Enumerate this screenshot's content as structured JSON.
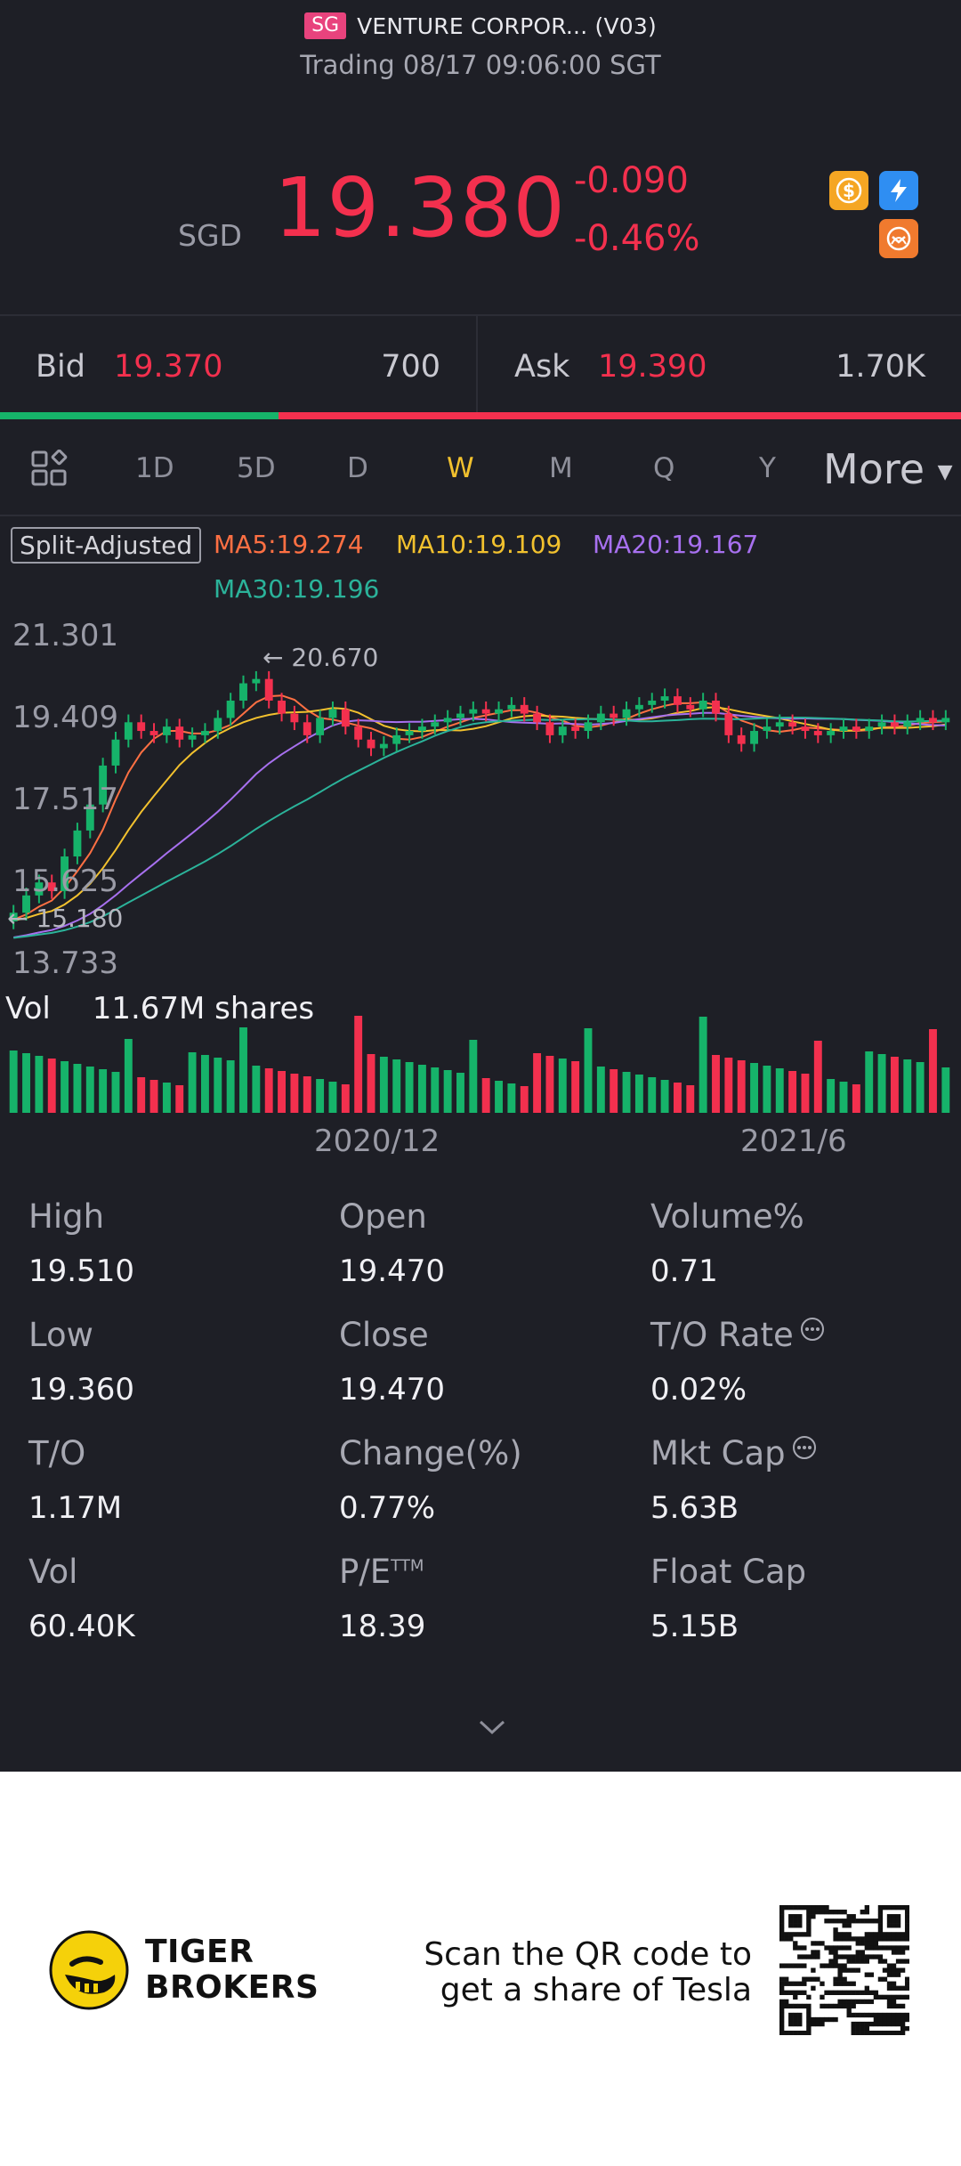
{
  "header": {
    "market_badge": "SG",
    "stock_name": "VENTURE CORPOR... (V03)",
    "status": "Trading 08/17 09:06:00 SGT"
  },
  "quote": {
    "currency": "SGD",
    "price": "19.380",
    "change": "-0.090",
    "change_pct": "-0.46%",
    "price_color": "#f3304e"
  },
  "icons": [
    "dollar-icon",
    "lightning-icon",
    "exchange-icon"
  ],
  "bidask": {
    "bid_label": "Bid",
    "bid_price": "19.370",
    "bid_qty": "700",
    "ask_label": "Ask",
    "ask_price": "19.390",
    "ask_qty": "1.70K",
    "bid_ratio": 0.29
  },
  "tabs": {
    "items": [
      "1D",
      "5D",
      "D",
      "W",
      "M",
      "Q",
      "Y"
    ],
    "active": "W",
    "more": "More"
  },
  "chart": {
    "split_label": "Split-Adjusted",
    "ma5": "MA5:19.274",
    "ma10": "MA10:19.109",
    "ma20": "MA20:19.167",
    "ma30": "MA30:19.196",
    "y_ticks": [
      "21.301",
      "19.409",
      "17.517",
      "15.625",
      "13.733"
    ],
    "high_marker": "20.670",
    "low_marker": "15.180",
    "vol_label": "Vol",
    "vol_value": "11.67M shares",
    "x_ticks": [
      "2020/12",
      "2021/6"
    ],
    "colors": {
      "up": "#16b36a",
      "down": "#f3304e",
      "ma5": "#ff7043",
      "ma10": "#f2c12e",
      "ma20": "#a770ef",
      "ma30": "#2bb39a"
    }
  },
  "stats": [
    {
      "label": "High",
      "value": "19.510"
    },
    {
      "label": "Open",
      "value": "19.470"
    },
    {
      "label": "Volume%",
      "value": "0.71"
    },
    {
      "label": "Low",
      "value": "19.360"
    },
    {
      "label": "Close",
      "value": "19.470"
    },
    {
      "label": "T/O Rate",
      "value": "0.02%"
    },
    {
      "label": "T/O",
      "value": "1.17M"
    },
    {
      "label": "Change(%)",
      "value": "0.77%"
    },
    {
      "label": "Mkt Cap",
      "value": "5.63B"
    },
    {
      "label": "Vol",
      "value": "60.40K"
    },
    {
      "label": "P/E",
      "value": "18.39"
    },
    {
      "label": "Float Cap",
      "value": "5.15B"
    }
  ],
  "pe_superscript": "TTM",
  "footer": {
    "brand_line1": "TIGER",
    "brand_line2": "BROKERS",
    "scan_line1": "Scan the QR code to",
    "scan_line2": "get a share of Tesla"
  }
}
